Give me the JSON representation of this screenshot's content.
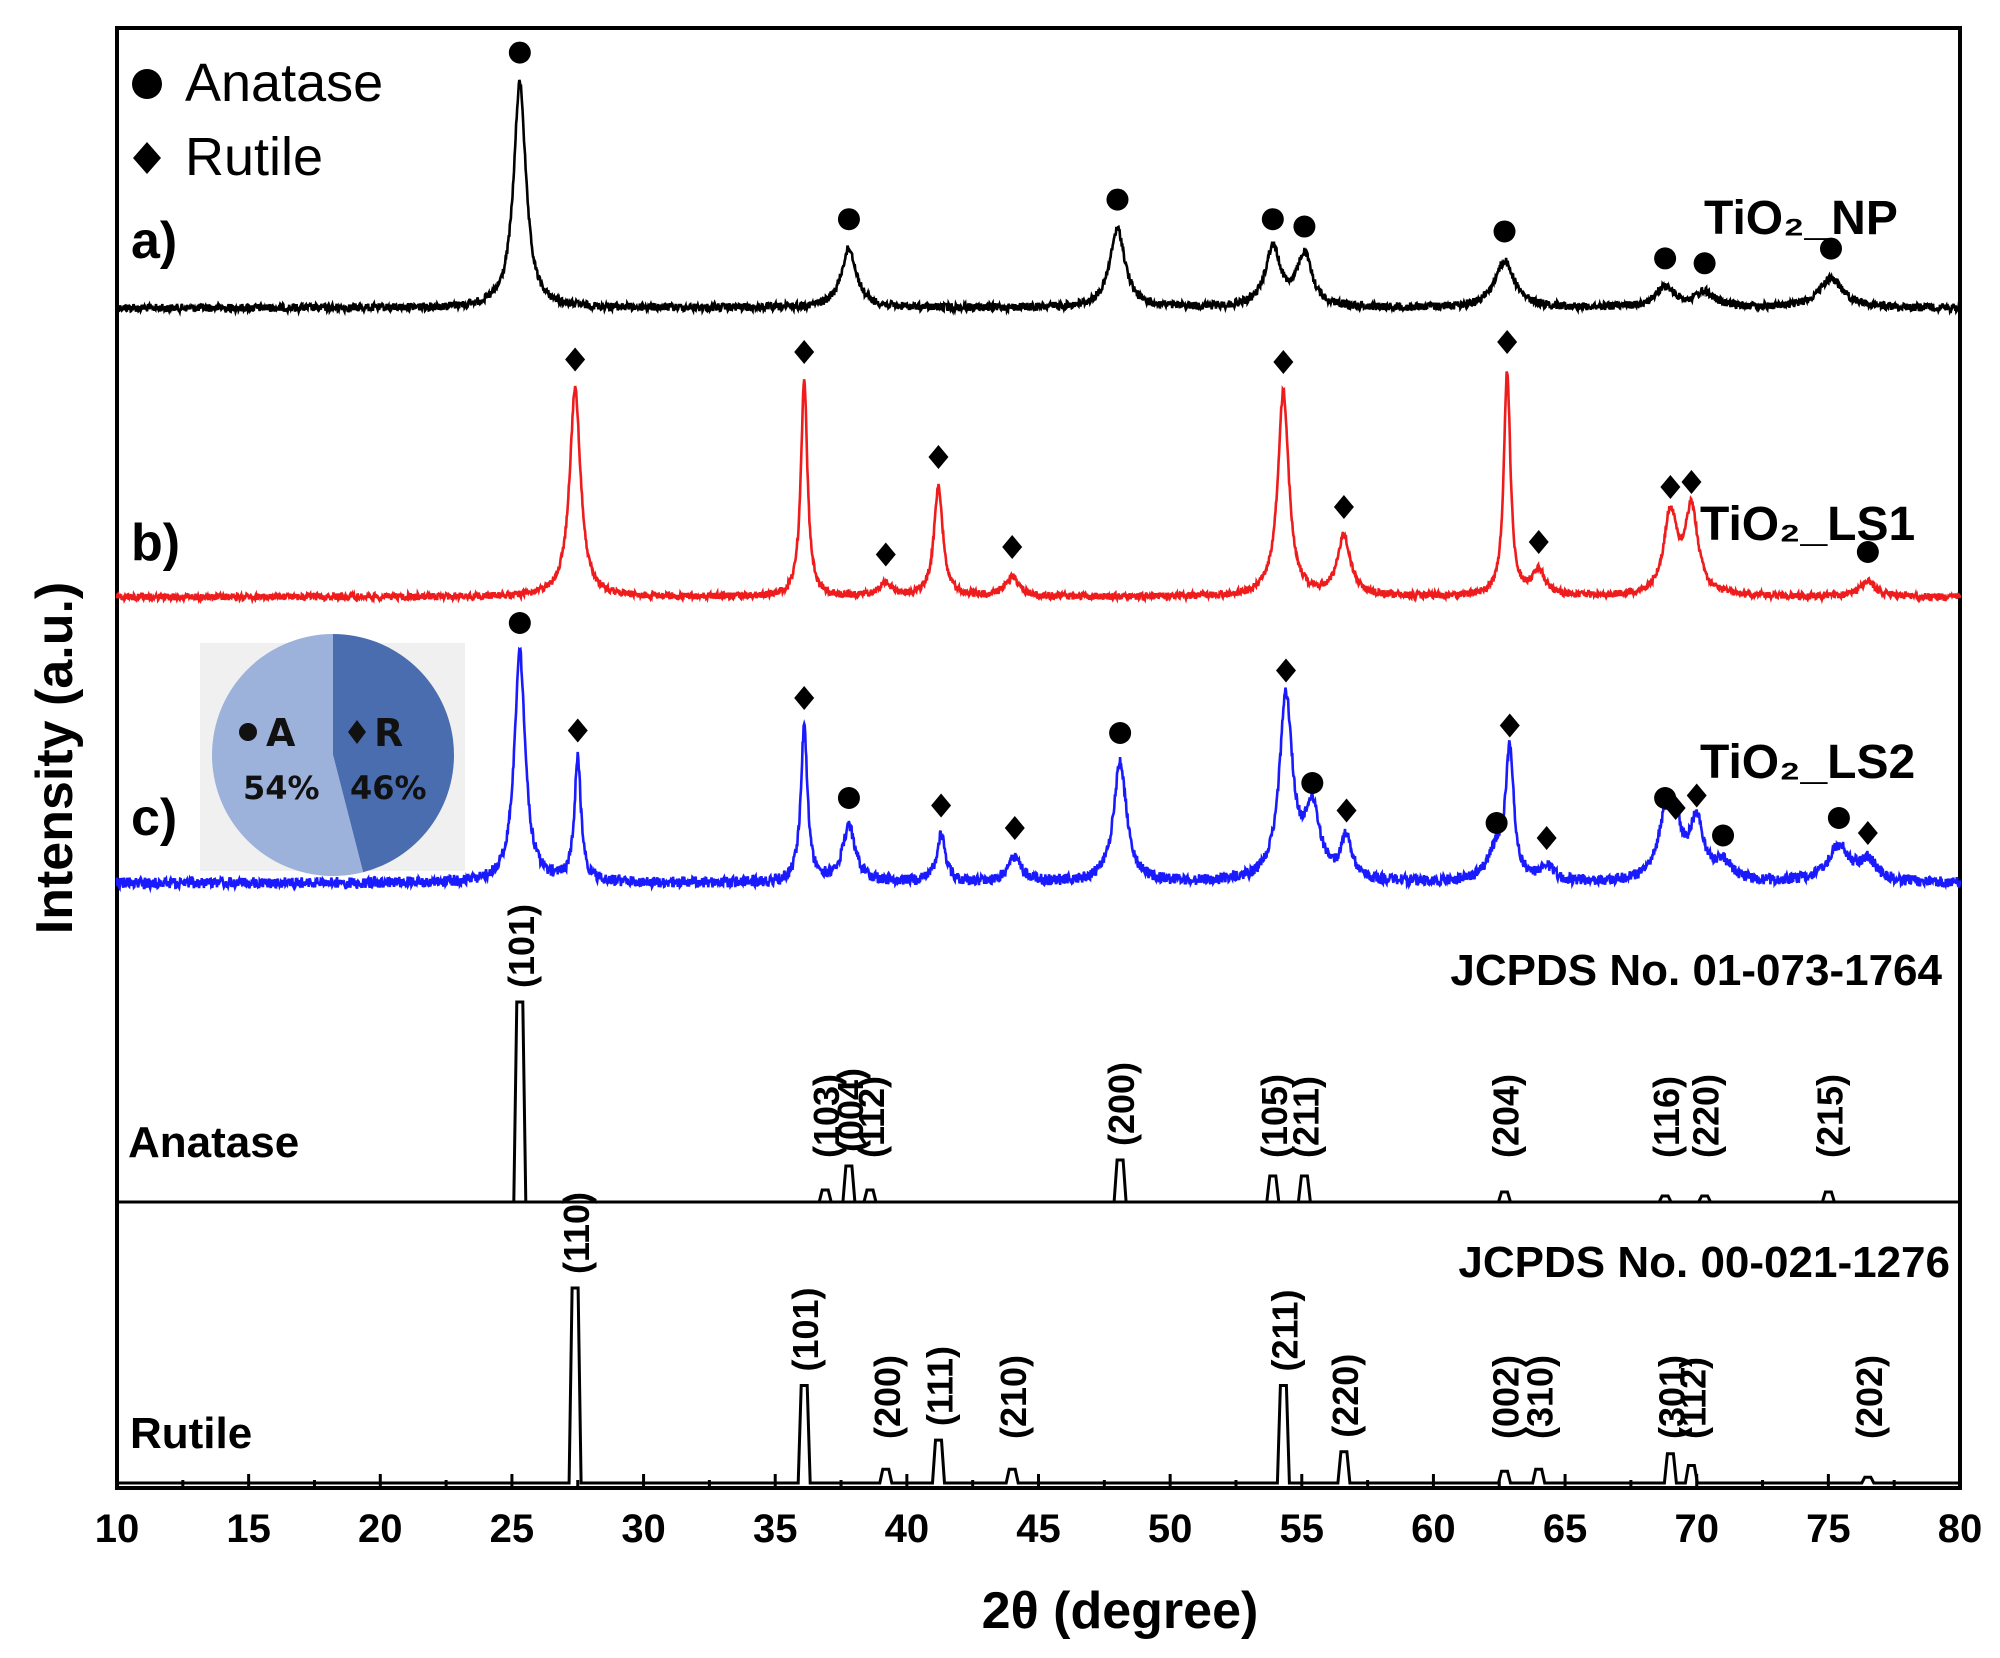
{
  "chart_data": {
    "type": "line",
    "title": "",
    "xlabel": "2θ (degree)",
    "ylabel": "Intensity (a.u.)",
    "xlim": [
      10,
      80
    ],
    "xticks": [
      10,
      15,
      20,
      25,
      30,
      35,
      40,
      45,
      50,
      55,
      60,
      65,
      70,
      75,
      80
    ],
    "legend": {
      "position": "top-left",
      "entries": [
        {
          "symbol": "circle",
          "label": "Anatase"
        },
        {
          "symbol": "diamond",
          "label": "Rutile"
        }
      ]
    },
    "series": [
      {
        "name": "a)",
        "label": "TiO₂_NP",
        "color": "#000000",
        "peaks": [
          {
            "x": 25.3,
            "h": 0.92,
            "w": 0.28,
            "m": "circle"
          },
          {
            "x": 37.8,
            "h": 0.24,
            "w": 0.35,
            "m": "circle"
          },
          {
            "x": 48.0,
            "h": 0.32,
            "w": 0.35,
            "m": "circle"
          },
          {
            "x": 53.9,
            "h": 0.24,
            "w": 0.35,
            "m": "circle"
          },
          {
            "x": 55.1,
            "h": 0.21,
            "w": 0.35,
            "m": "circle"
          },
          {
            "x": 62.7,
            "h": 0.19,
            "w": 0.45,
            "m": "circle"
          },
          {
            "x": 68.8,
            "h": 0.08,
            "w": 0.45,
            "m": "circle"
          },
          {
            "x": 70.3,
            "h": 0.06,
            "w": 0.45,
            "m": "circle"
          },
          {
            "x": 75.1,
            "h": 0.12,
            "w": 0.55,
            "m": "circle"
          }
        ]
      },
      {
        "name": "b)",
        "label": "TiO₂_LS1",
        "color": "#ee1c1c",
        "peaks": [
          {
            "x": 27.4,
            "h": 0.83,
            "w": 0.25,
            "m": "diamond"
          },
          {
            "x": 36.1,
            "h": 0.86,
            "w": 0.15,
            "m": "diamond"
          },
          {
            "x": 39.2,
            "h": 0.05,
            "w": 0.3,
            "m": "diamond"
          },
          {
            "x": 41.2,
            "h": 0.44,
            "w": 0.2,
            "m": "diamond"
          },
          {
            "x": 44.0,
            "h": 0.08,
            "w": 0.3,
            "m": "diamond"
          },
          {
            "x": 54.3,
            "h": 0.82,
            "w": 0.25,
            "m": "diamond"
          },
          {
            "x": 56.6,
            "h": 0.24,
            "w": 0.3,
            "m": "diamond"
          },
          {
            "x": 62.8,
            "h": 0.9,
            "w": 0.15,
            "m": "diamond"
          },
          {
            "x": 64.0,
            "h": 0.1,
            "w": 0.3,
            "m": "diamond"
          },
          {
            "x": 69.0,
            "h": 0.32,
            "w": 0.3,
            "m": "diamond"
          },
          {
            "x": 69.8,
            "h": 0.34,
            "w": 0.3,
            "m": "diamond"
          },
          {
            "x": 76.5,
            "h": 0.06,
            "w": 0.35,
            "m": "circle"
          }
        ]
      },
      {
        "name": "c)",
        "label": "TiO₂_LS2",
        "color": "#1a1aff",
        "peaks": [
          {
            "x": 25.3,
            "h": 0.92,
            "w": 0.25,
            "m": "circle"
          },
          {
            "x": 27.5,
            "h": 0.49,
            "w": 0.15,
            "m": "diamond"
          },
          {
            "x": 36.1,
            "h": 0.62,
            "w": 0.15,
            "m": "diamond"
          },
          {
            "x": 37.8,
            "h": 0.22,
            "w": 0.3,
            "m": "circle"
          },
          {
            "x": 41.3,
            "h": 0.19,
            "w": 0.2,
            "m": "diamond"
          },
          {
            "x": 44.1,
            "h": 0.1,
            "w": 0.3,
            "m": "diamond"
          },
          {
            "x": 48.1,
            "h": 0.48,
            "w": 0.3,
            "m": "circle"
          },
          {
            "x": 54.4,
            "h": 0.73,
            "w": 0.3,
            "m": "diamond"
          },
          {
            "x": 55.4,
            "h": 0.28,
            "w": 0.35,
            "m": "circle"
          },
          {
            "x": 56.7,
            "h": 0.17,
            "w": 0.25,
            "m": "diamond"
          },
          {
            "x": 62.4,
            "h": 0.12,
            "w": 0.4,
            "m": "circle"
          },
          {
            "x": 62.9,
            "h": 0.51,
            "w": 0.18,
            "m": "diamond"
          },
          {
            "x": 64.3,
            "h": 0.06,
            "w": 0.3,
            "m": "diamond"
          },
          {
            "x": 68.8,
            "h": 0.22,
            "w": 0.35,
            "m": "circle"
          },
          {
            "x": 69.2,
            "h": 0.18,
            "w": 0.3,
            "m": "diamond"
          },
          {
            "x": 70.0,
            "h": 0.23,
            "w": 0.3,
            "m": "diamond"
          },
          {
            "x": 71.0,
            "h": 0.07,
            "w": 0.4,
            "m": "circle"
          },
          {
            "x": 75.4,
            "h": 0.14,
            "w": 0.5,
            "m": "circle"
          },
          {
            "x": 76.5,
            "h": 0.08,
            "w": 0.4,
            "m": "diamond"
          }
        ]
      }
    ],
    "references": [
      {
        "name": "Anatase",
        "card": "JCPDS No. 01-073-1764",
        "lines": [
          {
            "x": 25.3,
            "h": 1.0,
            "hkl": "(101)"
          },
          {
            "x": 36.9,
            "h": 0.06,
            "hkl": "(103)"
          },
          {
            "x": 37.8,
            "h": 0.18,
            "hkl": "(004)"
          },
          {
            "x": 38.6,
            "h": 0.06,
            "hkl": "(112)"
          },
          {
            "x": 48.1,
            "h": 0.21,
            "hkl": "(200)"
          },
          {
            "x": 53.9,
            "h": 0.13,
            "hkl": "(105)"
          },
          {
            "x": 55.1,
            "h": 0.13,
            "hkl": "(211)"
          },
          {
            "x": 62.7,
            "h": 0.05,
            "hkl": "(204)"
          },
          {
            "x": 68.8,
            "h": 0.03,
            "hkl": "(116)"
          },
          {
            "x": 70.3,
            "h": 0.03,
            "hkl": "(220)"
          },
          {
            "x": 75.0,
            "h": 0.05,
            "hkl": "(215)"
          }
        ]
      },
      {
        "name": "Rutile",
        "card": "JCPDS No. 00-021-1276",
        "lines": [
          {
            "x": 27.4,
            "h": 1.0,
            "hkl": "(110)"
          },
          {
            "x": 36.1,
            "h": 0.5,
            "hkl": "(101)"
          },
          {
            "x": 39.2,
            "h": 0.07,
            "hkl": "(200)"
          },
          {
            "x": 41.2,
            "h": 0.22,
            "hkl": "(111)"
          },
          {
            "x": 44.0,
            "h": 0.07,
            "hkl": "(210)"
          },
          {
            "x": 54.3,
            "h": 0.5,
            "hkl": "(211)"
          },
          {
            "x": 56.6,
            "h": 0.16,
            "hkl": "(220)"
          },
          {
            "x": 62.7,
            "h": 0.06,
            "hkl": "(002)"
          },
          {
            "x": 64.0,
            "h": 0.07,
            "hkl": "(310)"
          },
          {
            "x": 69.0,
            "h": 0.15,
            "hkl": "(301)"
          },
          {
            "x": 69.8,
            "h": 0.09,
            "hkl": "(112)"
          },
          {
            "x": 76.5,
            "h": 0.03,
            "hkl": "(202)"
          }
        ]
      }
    ],
    "inset_pie": {
      "slices": [
        {
          "label": "A",
          "value": 54,
          "pct_label": "54%",
          "color": "#9db2db"
        },
        {
          "label": "R",
          "value": 46,
          "pct_label": "46%",
          "color": "#4a6db0"
        }
      ]
    }
  }
}
